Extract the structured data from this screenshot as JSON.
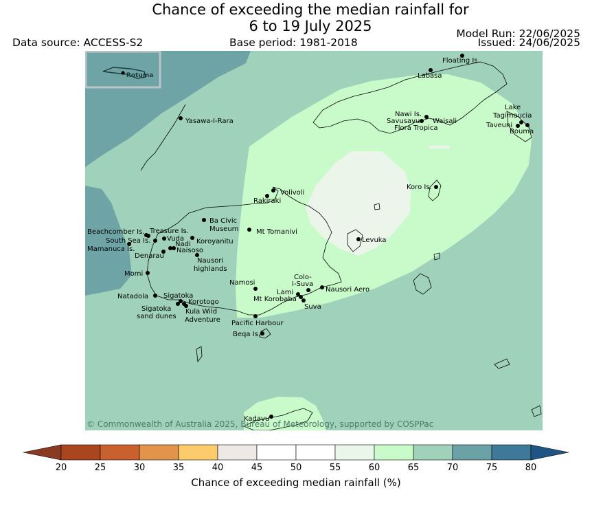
{
  "header": {
    "title_line1": "Chance of exceeding the median rainfall for",
    "title_line2": "6 to 19 July 2025",
    "data_source": "Data source: ACCESS-S2",
    "base_period": "Base period: 1981-2018",
    "model_run": "Model Run: 22/06/2025",
    "issued": "Issued: 24/06/2025"
  },
  "map": {
    "inset_label": "Rotuma",
    "copyright": "© Commonwealth of Australia 2025, Bureau of Meteorology, supported by COSPPac",
    "colors": {
      "band_75_80": "#6fa4a6",
      "band_65_70": "#9fd1bb",
      "band_60_65": "#c9fbca",
      "band_55_60": "#ebf5ea"
    },
    "places": {
      "floating_is": "Floating Is.",
      "labasa": "Labasa",
      "yasawa": "Yasawa-I-Rara",
      "nawi_is": "Nawi Is.",
      "savusavu": "Savusavu",
      "waisali": "Waisali",
      "flora_tropica": "Flora Tropica",
      "lake_tagimaucia_1": "Lake",
      "lake_tagimaucia_2": "Tagimaucia",
      "taveuni": "Taveuni",
      "bouma": "Bouma",
      "koro_is": "Koro Is.",
      "volivoli": "Volivoli",
      "rakiraki": "Rakiraki",
      "ba_civic_1": "Ba Civic",
      "ba_civic_2": "Museum",
      "mt_tomanivi": "Mt Tomanivi",
      "beachcomber": "Beachcomber Is.",
      "treasure": "Treasure Is.",
      "south_sea": "South Sea Is.",
      "vuda": "Vuda",
      "koroyanitu": "Koroyanitu",
      "mamanuca": "Mamanuca Is.",
      "nadi": "Nadi",
      "naisoso": "Naisoso",
      "denarau": "Denarau",
      "nausori_highlands_1": "Nausori",
      "nausori_highlands_2": "highlands",
      "levuka": "Levuka",
      "momi": "Momi",
      "namosi": "Namosi",
      "colo_i_suva_1": "Colo-",
      "colo_i_suva_2": "I-Suva",
      "natadola": "Natadola",
      "sigatoka": "Sigatoka",
      "lami": "Lami",
      "nausori_aero": "Nausori Aero",
      "korotogo": "Korotogo",
      "mt_korobaba": "Mt Korobaba",
      "sigatoka_dunes_1": "Sigatoka",
      "sigatoka_dunes_2": "sand dunes",
      "kula_1": "Kula Wild",
      "kula_2": "Adventure",
      "suva": "Suva",
      "pacific_harbour": "Pacific Harbour",
      "beqa": "Beqa Is.",
      "kadavu": "Kadavu"
    }
  },
  "colorbar": {
    "label": "Chance of exceeding median rainfall (%)",
    "ticks": [
      "20",
      "25",
      "30",
      "35",
      "40",
      "45",
      "50",
      "55",
      "60",
      "65",
      "70",
      "75",
      "80"
    ],
    "colors": [
      "#a9451f",
      "#c9612f",
      "#e2944a",
      "#fccb6a",
      "#ece9e6",
      "#ffffff",
      "#ffffff",
      "#ebf6ea",
      "#c9fbca",
      "#9fd1bb",
      "#6ba2a5",
      "#3e7a97"
    ],
    "under_color": "#8a3a22",
    "over_color": "#1f5585"
  }
}
